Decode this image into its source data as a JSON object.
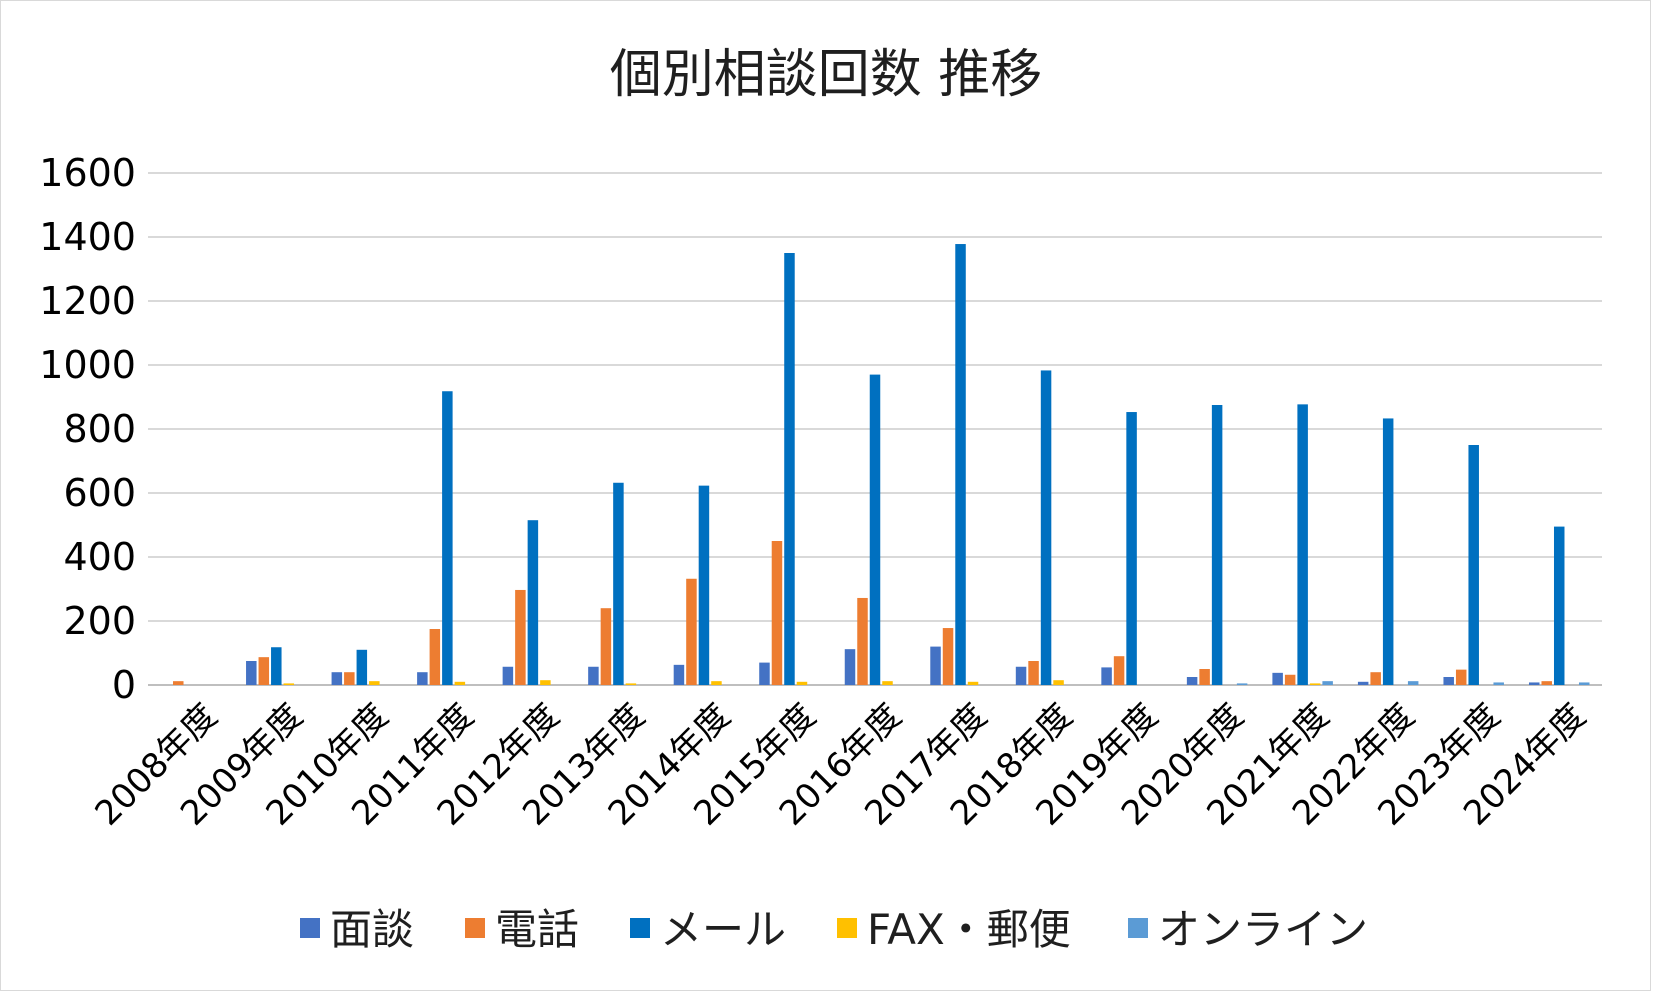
{
  "chart_data": {
    "type": "bar",
    "title": "個別相談回数 推移",
    "xlabel": "",
    "ylabel": "",
    "ylim": [
      0,
      1600
    ],
    "yticks": [
      0,
      200,
      400,
      600,
      800,
      1000,
      1200,
      1400,
      1600
    ],
    "grid": true,
    "legend_position": "bottom",
    "categories": [
      "2008年度",
      "2009年度",
      "2010年度",
      "2011年度",
      "2012年度",
      "2013年度",
      "2014年度",
      "2015年度",
      "2016年度",
      "2017年度",
      "2018年度",
      "2019年度",
      "2020年度",
      "2021年度",
      "2022年度",
      "2023年度",
      "2024年度"
    ],
    "series": [
      {
        "name": "面談",
        "color": "#4472C4",
        "values": [
          0,
          75,
          40,
          40,
          57,
          57,
          63,
          70,
          112,
          120,
          57,
          55,
          25,
          38,
          10,
          25,
          8
        ]
      },
      {
        "name": "電話",
        "color": "#ED7D31",
        "values": [
          12,
          87,
          40,
          175,
          297,
          240,
          332,
          450,
          272,
          178,
          75,
          90,
          50,
          32,
          40,
          48,
          12
        ]
      },
      {
        "name": "メール",
        "color": "#0070C0",
        "values": [
          0,
          118,
          110,
          918,
          515,
          632,
          623,
          1350,
          970,
          1378,
          983,
          853,
          875,
          877,
          833,
          750,
          495
        ]
      },
      {
        "name": "FAX・郵便",
        "color": "#FFC000",
        "values": [
          0,
          5,
          12,
          10,
          15,
          5,
          12,
          10,
          12,
          10,
          15,
          0,
          0,
          5,
          0,
          0,
          0
        ]
      },
      {
        "name": "オンライン",
        "color": "#5B9BD5",
        "values": [
          0,
          0,
          0,
          0,
          0,
          0,
          0,
          0,
          0,
          0,
          0,
          0,
          5,
          12,
          12,
          8,
          8
        ]
      }
    ]
  }
}
